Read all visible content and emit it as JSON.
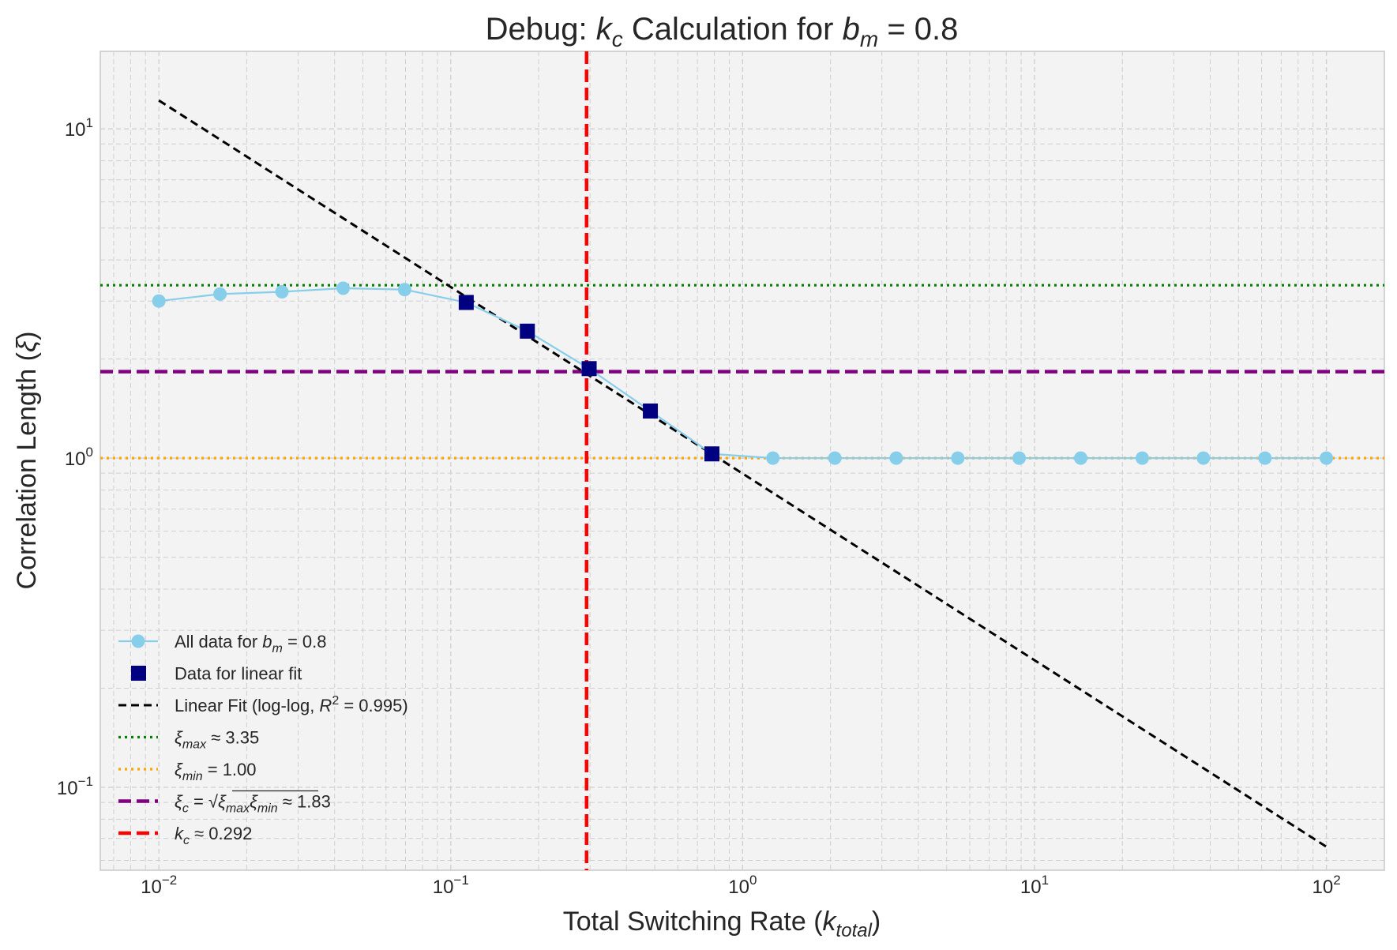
{
  "chart_data": {
    "type": "line",
    "title": "Debug: k_c Calculation for b_m = 0.8",
    "title_parts": {
      "prefix": "Debug: ",
      "k": "k",
      "c": "c",
      "mid": " Calculation for ",
      "b": "b",
      "m": "m",
      "eq": " = 0.8"
    },
    "xlabel": "Total Switching Rate (k_total)",
    "xlabel_parts": {
      "prefix": "Total Switching Rate (",
      "k": "k",
      "sub": "total",
      "suffix": ")"
    },
    "ylabel": "Correlation Length (ξ)",
    "ylabel_parts": {
      "prefix": "Correlation Length (",
      "xi": "ξ",
      "suffix": ")"
    },
    "x_scale": "log",
    "y_scale": "log",
    "xlim": [
      0.0063,
      158
    ],
    "ylim": [
      0.056,
      17.2
    ],
    "x_ticks": [
      {
        "value": 0.01,
        "base": "10",
        "exp": "−2"
      },
      {
        "value": 0.1,
        "base": "10",
        "exp": "−1"
      },
      {
        "value": 1,
        "base": "10",
        "exp": "0"
      },
      {
        "value": 10,
        "base": "10",
        "exp": "1"
      },
      {
        "value": 100,
        "base": "10",
        "exp": "2"
      }
    ],
    "y_ticks": [
      {
        "value": 0.1,
        "base": "10",
        "exp": "−1"
      },
      {
        "value": 1,
        "base": "10",
        "exp": "0"
      },
      {
        "value": 10,
        "base": "10",
        "exp": "1"
      }
    ],
    "grid": true,
    "legend_position": "lower-left",
    "series": [
      {
        "name": "All data for b_m = 0.8",
        "kind": "line-marker",
        "color": "#87CEEB",
        "x": [
          0.01,
          0.0162,
          0.0264,
          0.0428,
          0.0695,
          0.113,
          0.183,
          0.298,
          0.483,
          0.785,
          1.27,
          2.07,
          3.36,
          5.46,
          8.86,
          14.4,
          23.4,
          37.9,
          61.6,
          100
        ],
        "y": [
          3.0,
          3.15,
          3.2,
          3.28,
          3.25,
          2.97,
          2.43,
          1.87,
          1.39,
          1.03,
          1.0,
          1.0,
          1.0,
          1.0,
          1.0,
          1.0,
          1.0,
          1.0,
          1.0,
          1.0
        ]
      },
      {
        "name": "Data for linear fit",
        "kind": "square-marker",
        "color": "#000080",
        "x": [
          0.113,
          0.183,
          0.298,
          0.483,
          0.785
        ],
        "y": [
          2.97,
          2.43,
          1.87,
          1.39,
          1.03
        ]
      },
      {
        "name": "Linear Fit (log-log, R² = 0.995)",
        "kind": "dashed-line",
        "color": "#000000",
        "x": [
          0.01,
          100
        ],
        "y": [
          12.2,
          0.066
        ]
      }
    ],
    "reference_lines": [
      {
        "name": "ξ_max ≈ 3.35",
        "orientation": "horizontal",
        "value": 3.35,
        "color": "#008000",
        "style": "dotted"
      },
      {
        "name": "ξ_min = 1.00",
        "orientation": "horizontal",
        "value": 1.0,
        "color": "#FFA500",
        "style": "dotted"
      },
      {
        "name": "ξ_c = √(ξ_max ξ_min) ≈ 1.83",
        "orientation": "horizontal",
        "value": 1.83,
        "color": "#800080",
        "style": "dashed"
      },
      {
        "name": "k_c ≈ 0.292",
        "orientation": "vertical",
        "value": 0.292,
        "color": "#FF0000",
        "style": "dashed"
      }
    ],
    "legend": [
      {
        "key": "all",
        "color": "#87CEEB",
        "parts": [
          [
            "t",
            "All data for "
          ],
          [
            "i",
            "b"
          ],
          [
            "s",
            "m"
          ],
          [
            "t",
            " = 0.8"
          ]
        ]
      },
      {
        "key": "fit_data",
        "color": "#000080",
        "parts": [
          [
            "t",
            "Data for linear fit"
          ]
        ]
      },
      {
        "key": "fit",
        "color": "#000000",
        "parts": [
          [
            "t",
            "Linear Fit (log-log, "
          ],
          [
            "i",
            "R"
          ],
          [
            "p",
            "2"
          ],
          [
            "t",
            " = 0.995)"
          ]
        ]
      },
      {
        "key": "xi_max",
        "color": "#008000",
        "parts": [
          [
            "i",
            "ξ"
          ],
          [
            "s",
            "max"
          ],
          [
            "t",
            " ≈ 3.35"
          ]
        ]
      },
      {
        "key": "xi_min",
        "color": "#FFA500",
        "parts": [
          [
            "i",
            "ξ"
          ],
          [
            "s",
            "min"
          ],
          [
            "t",
            " = 1.00"
          ]
        ]
      },
      {
        "key": "xi_c",
        "color": "#800080",
        "parts": [
          [
            "i",
            "ξ"
          ],
          [
            "s",
            "c"
          ],
          [
            "t",
            " = √"
          ],
          [
            "i",
            "ξ"
          ],
          [
            "s",
            "max"
          ],
          [
            "i",
            "ξ"
          ],
          [
            "s",
            "min"
          ],
          [
            "t",
            " ≈ 1.83"
          ]
        ]
      },
      {
        "key": "k_c",
        "color": "#FF0000",
        "parts": [
          [
            "i",
            "k"
          ],
          [
            "s",
            "c"
          ],
          [
            "t",
            " ≈ 0.292"
          ]
        ]
      }
    ]
  }
}
